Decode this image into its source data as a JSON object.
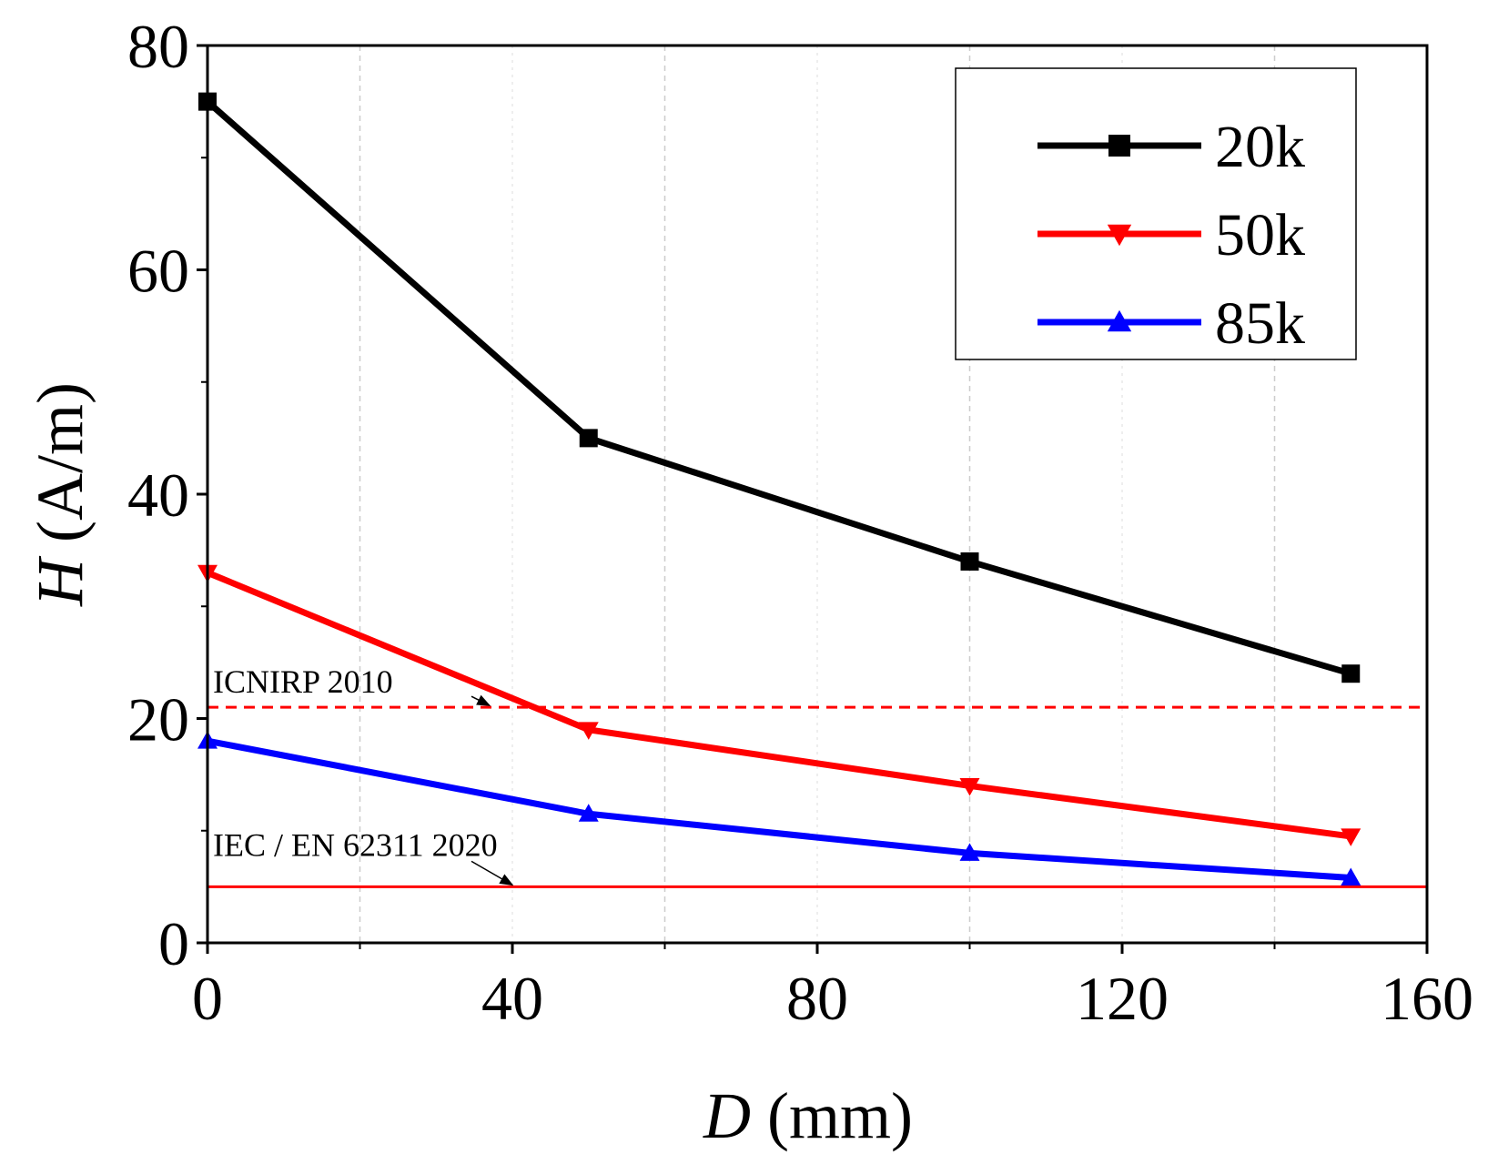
{
  "chart_data": {
    "type": "line",
    "xlabel": {
      "italic": "D",
      "rest": " (mm)"
    },
    "ylabel": {
      "italic": "H",
      "rest": " (A/m)"
    },
    "xlim": [
      0,
      160
    ],
    "ylim": [
      0,
      80
    ],
    "xticks": [
      0,
      40,
      80,
      120,
      160
    ],
    "yticks": [
      0,
      20,
      40,
      60,
      80
    ],
    "x_minor_ticks": [
      20,
      60,
      100,
      140
    ],
    "y_minor_ticks": [
      10,
      30,
      50,
      70
    ],
    "grid": "vertical dashed at 20, 60, 100, 140",
    "legend_position": "top-right",
    "series": [
      {
        "name": "20k",
        "color": "#000000",
        "marker": "square",
        "x": [
          0,
          50,
          100,
          150
        ],
        "y": [
          75,
          45,
          34,
          24
        ]
      },
      {
        "name": "50k",
        "color": "#ff0000",
        "marker": "triangle-down",
        "x": [
          0,
          50,
          100,
          150
        ],
        "y": [
          33,
          19,
          14,
          9.5
        ]
      },
      {
        "name": "85k",
        "color": "#0000ff",
        "marker": "triangle-up",
        "x": [
          0,
          50,
          100,
          150
        ],
        "y": [
          18,
          11.5,
          8,
          5.8
        ]
      }
    ],
    "reference_lines": [
      {
        "label": "ICNIRP 2010",
        "y": 21,
        "color": "#ff0000",
        "style": "dashed",
        "arrow_to_x": 37
      },
      {
        "label": "IEC / EN 62311 2020",
        "y": 5,
        "color": "#ff0000",
        "style": "solid",
        "arrow_to_x": 40
      }
    ]
  }
}
